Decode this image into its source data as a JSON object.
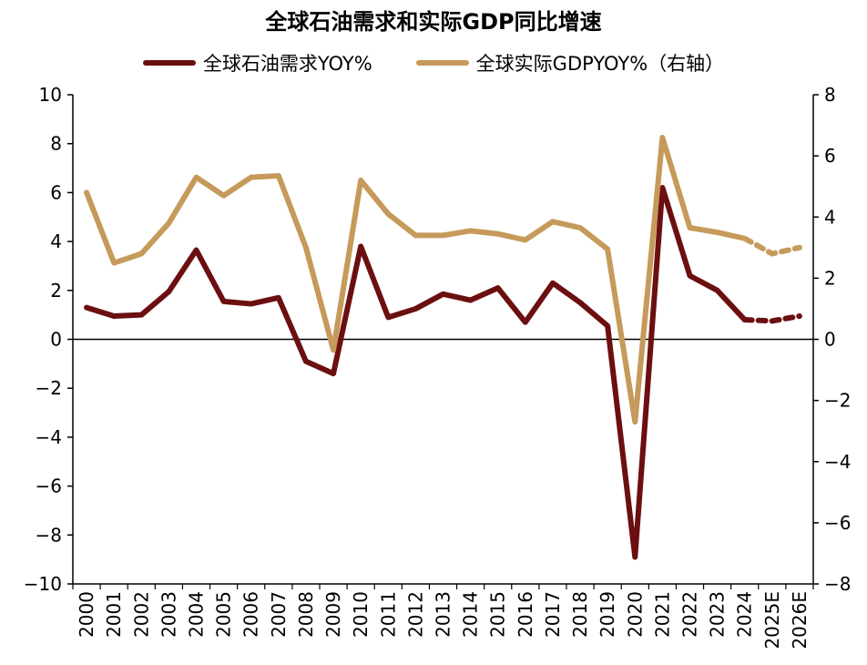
{
  "chart_data": {
    "type": "line",
    "title": "全球石油需求和实际GDP同比增速",
    "categories": [
      "2000",
      "2001",
      "2002",
      "2003",
      "2004",
      "2005",
      "2006",
      "2007",
      "2008",
      "2009",
      "2010",
      "2011",
      "2012",
      "2013",
      "2014",
      "2015",
      "2016",
      "2017",
      "2018",
      "2019",
      "2020",
      "2021",
      "2022",
      "2023",
      "2024",
      "2025E",
      "2026E"
    ],
    "series": [
      {
        "name": "全球石油需求YOY%",
        "axis": "left",
        "color": "#6b0f10",
        "values": [
          1.3,
          0.95,
          1.0,
          1.95,
          3.65,
          1.55,
          1.45,
          1.7,
          -0.9,
          -1.4,
          3.8,
          0.9,
          1.25,
          1.85,
          1.6,
          2.1,
          0.7,
          2.3,
          1.5,
          0.55,
          -8.9,
          6.2,
          2.6,
          2.0,
          0.8,
          0.75,
          0.95
        ],
        "projected_from": "2025E"
      },
      {
        "name": "全球实际GDPYOY%（右轴）",
        "axis": "right",
        "color": "#c59a5a",
        "values": [
          4.8,
          2.5,
          2.8,
          3.8,
          5.3,
          4.7,
          5.3,
          5.35,
          3.0,
          -0.35,
          5.2,
          4.1,
          3.4,
          3.4,
          3.55,
          3.45,
          3.25,
          3.85,
          3.65,
          2.95,
          -2.7,
          6.6,
          3.65,
          3.5,
          3.3,
          2.8,
          3.0
        ],
        "projected_from": "2025E"
      }
    ],
    "left_axis": {
      "ylim": [
        -10,
        10
      ],
      "ticks": [
        "10",
        "8",
        "6",
        "4",
        "2",
        "0",
        "-2",
        "-4",
        "-6",
        "-8",
        "-10"
      ]
    },
    "right_axis": {
      "ylim": [
        -8,
        8
      ],
      "ticks": [
        "8",
        "6",
        "4",
        "2",
        "0",
        "-2",
        "-4",
        "-6",
        "-8"
      ]
    },
    "grid": false,
    "legend_placement": "top-center"
  }
}
